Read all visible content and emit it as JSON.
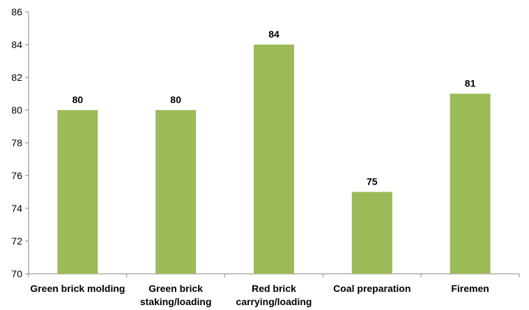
{
  "chart_data": {
    "type": "bar",
    "categories": [
      [
        "Green brick molding"
      ],
      [
        "Green brick",
        "staking/loading"
      ],
      [
        "Red brick",
        "carrying/loading"
      ],
      [
        "Coal preparation"
      ],
      [
        "Firemen"
      ]
    ],
    "values": [
      80,
      80,
      84,
      75,
      81
    ],
    "data_labels": [
      "80",
      "80",
      "84",
      "75",
      "81"
    ],
    "ylim": [
      70,
      86
    ],
    "yticks": [
      70,
      72,
      74,
      76,
      78,
      80,
      82,
      84,
      86
    ],
    "grid": false,
    "bar_color": "#9BBB59",
    "axis_color": "#868686",
    "legend": "none"
  }
}
